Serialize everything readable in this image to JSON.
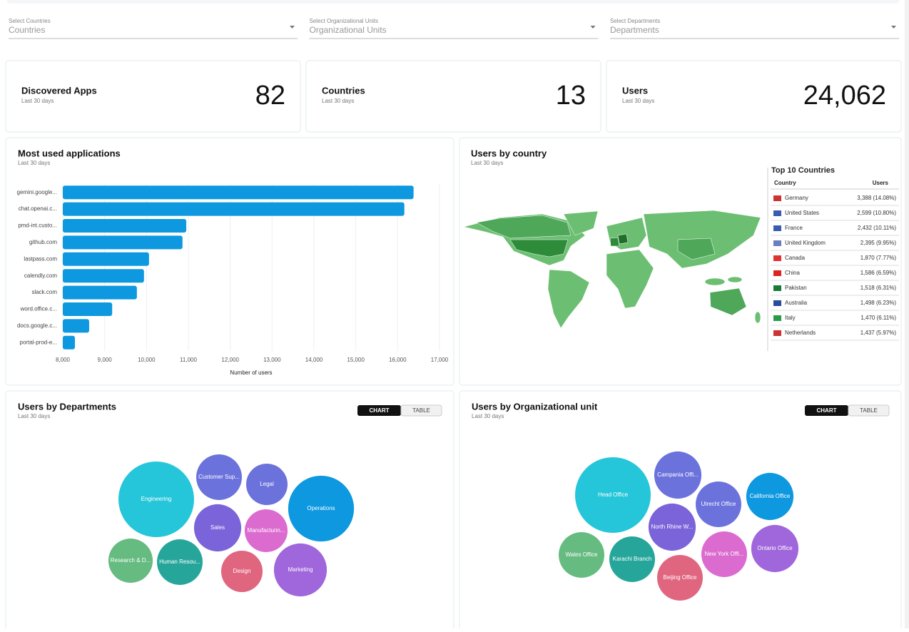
{
  "filters": [
    {
      "label": "Select Countries",
      "placeholder": "Countries"
    },
    {
      "label": "Select Organizational Units",
      "placeholder": "Organizational Units"
    },
    {
      "label": "Select Departments",
      "placeholder": "Departments"
    }
  ],
  "kpis": [
    {
      "title": "Discovered Apps",
      "subtitle": "Last 30 days",
      "value": "82"
    },
    {
      "title": "Countries",
      "subtitle": "Last 30 days",
      "value": "13"
    },
    {
      "title": "Users",
      "subtitle": "Last 30 days",
      "value": "24,062"
    }
  ],
  "map_panel": {
    "title": "Users by country",
    "subtitle": "Last 30 days"
  },
  "country_table": {
    "title": "Top 10 Countries",
    "columns": [
      "Country",
      "Users"
    ],
    "rows": [
      [
        "Germany",
        "3,388 (14.08%)"
      ],
      [
        "United States",
        "2,599 (10.80%)"
      ],
      [
        "France",
        "2,432 (10.11%)"
      ],
      [
        "United Kingdom",
        "2,395 (9.95%)"
      ],
      [
        "Canada",
        "1,870 (7.77%)"
      ],
      [
        "China",
        "1,586 (6.59%)"
      ],
      [
        "Pakistan",
        "1,518 (6.31%)"
      ],
      [
        "Australia",
        "1,498 (6.23%)"
      ],
      [
        "Italy",
        "1,470 (6.11%)"
      ],
      [
        "Netherlands",
        "1,437 (5.97%)"
      ]
    ]
  },
  "toggle": [
    "CHART",
    "TABLE"
  ],
  "chart_data": [
    {
      "type": "bar",
      "orientation": "horizontal",
      "title": "Most used applications",
      "subtitle": "Last 30 days",
      "x_label": "Number of users",
      "color": "#0d98e0",
      "grid": true,
      "categories": [
        "gemini.google...",
        "chat.openai.c...",
        "pmd-int.custo...",
        "github.com",
        "lastpass.com",
        "calendly.com",
        "slack.com",
        "word.office.c...",
        "docs.google.c...",
        "portal-prod-e..."
      ],
      "values": [
        16380,
        16160,
        10950,
        10860,
        10060,
        9940,
        9770,
        9180,
        8630,
        8290
      ],
      "xlim": [
        8000,
        17000
      ],
      "xticks": [
        {
          "value": 8000,
          "label": "8,000"
        },
        {
          "value": 9000,
          "label": "9,000"
        },
        {
          "value": 10000,
          "label": "10,000"
        },
        {
          "value": 11000,
          "label": "11,000"
        },
        {
          "value": 12000,
          "label": "12,000"
        },
        {
          "value": 13000,
          "label": "13,000"
        },
        {
          "value": 14000,
          "label": "14,000"
        },
        {
          "value": 15000,
          "label": "15,000"
        },
        {
          "value": 16000,
          "label": "16,000"
        },
        {
          "value": 17000,
          "label": "17,000"
        }
      ]
    },
    {
      "type": "bubble",
      "title": "Users by Departments",
      "subtitle": "Last 30 days",
      "categories": [
        "Engineering",
        "Customer Sup...",
        "Legal",
        "Operations",
        "Sales",
        "Manufacturin...",
        "Research & D...",
        "Human Resou...",
        "Design",
        "Marketing"
      ],
      "values": [
        2800,
        1020,
        840,
        2120,
        1090,
        900,
        960,
        1020,
        840,
        1370
      ],
      "colors": [
        "#26c6da",
        "#6b72dc",
        "#6b72dc",
        "#0d98e0",
        "#7b63d9",
        "#dc6bd0",
        "#66bb80",
        "#26a69a",
        "#e06680",
        "#a066dc"
      ]
    },
    {
      "type": "bubble",
      "title": "Users by Organizational unit",
      "subtitle": "Last 30 days",
      "categories": [
        "Head Office",
        "Campania Offi...",
        "Utrecht Office",
        "California Office",
        "North Rhine W...",
        "Wales Office",
        "Karachi Branch",
        "New York Offi...",
        "Ontario Office",
        "Beijing Office"
      ],
      "values": [
        2800,
        1090,
        1020,
        1090,
        1090,
        1020,
        1020,
        1020,
        1090,
        1020
      ],
      "colors": [
        "#26c6da",
        "#6b72dc",
        "#6b72dc",
        "#0d98e0",
        "#7b63d9",
        "#66bb80",
        "#26a69a",
        "#dc6bd0",
        "#a066dc",
        "#e06680"
      ]
    }
  ]
}
